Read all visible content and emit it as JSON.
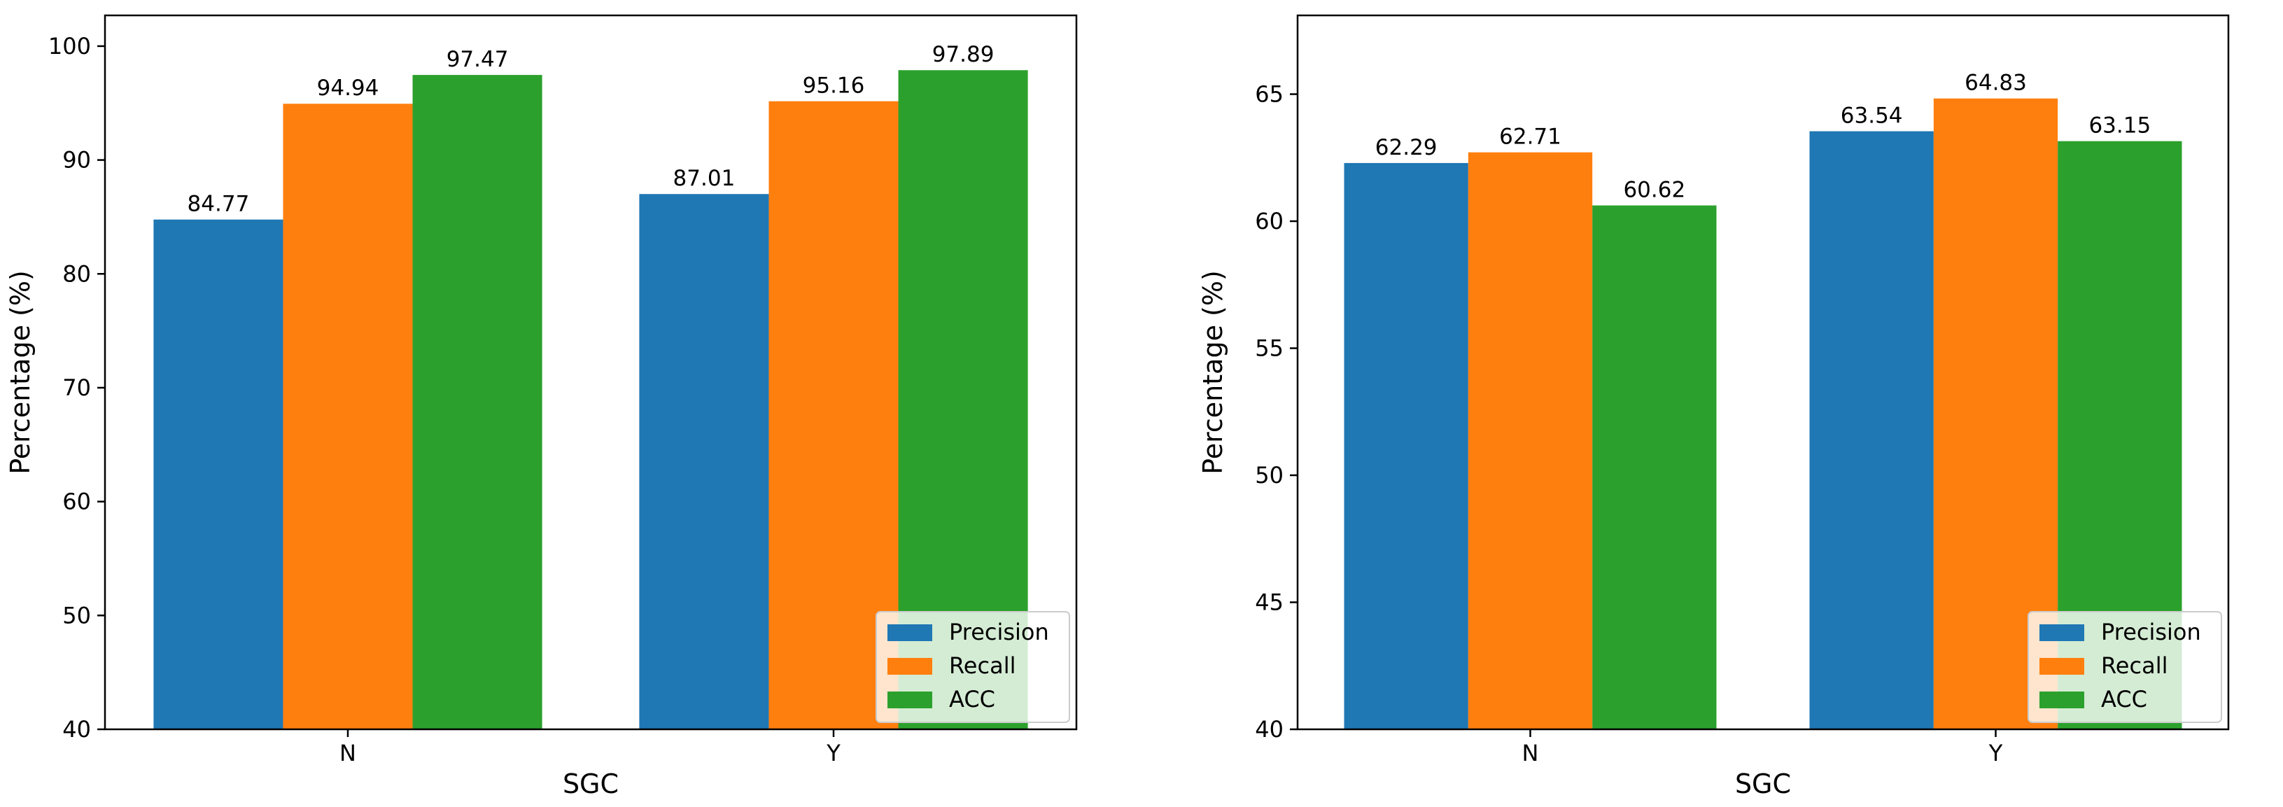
{
  "chart_data": [
    {
      "type": "bar",
      "categories": [
        "N",
        "Y"
      ],
      "series": [
        {
          "name": "Precision",
          "values": [
            84.77,
            87.01
          ],
          "color": "#1f77b4"
        },
        {
          "name": "Recall",
          "values": [
            94.94,
            95.16
          ],
          "color": "#ff7f0e"
        },
        {
          "name": "ACC",
          "values": [
            97.47,
            97.89
          ],
          "color": "#2ca02c"
        }
      ],
      "title": "",
      "xlabel": "SGC",
      "ylabel": "Percentage (%)",
      "ylim": [
        40,
        102.7
      ],
      "yticks": [
        40,
        50,
        60,
        70,
        80,
        90,
        100
      ],
      "grid": false,
      "legend": "lower right"
    },
    {
      "type": "bar",
      "categories": [
        "N",
        "Y"
      ],
      "series": [
        {
          "name": "Precision",
          "values": [
            62.29,
            63.54
          ],
          "color": "#1f77b4"
        },
        {
          "name": "Recall",
          "values": [
            62.71,
            64.83
          ],
          "color": "#ff7f0e"
        },
        {
          "name": "ACC",
          "values": [
            60.62,
            63.15
          ],
          "color": "#2ca02c"
        }
      ],
      "title": "",
      "xlabel": "SGC",
      "ylabel": "Percentage (%)",
      "ylim": [
        40,
        68.1
      ],
      "yticks": [
        40,
        45,
        50,
        55,
        60,
        65
      ],
      "grid": false,
      "legend": "lower right"
    }
  ]
}
